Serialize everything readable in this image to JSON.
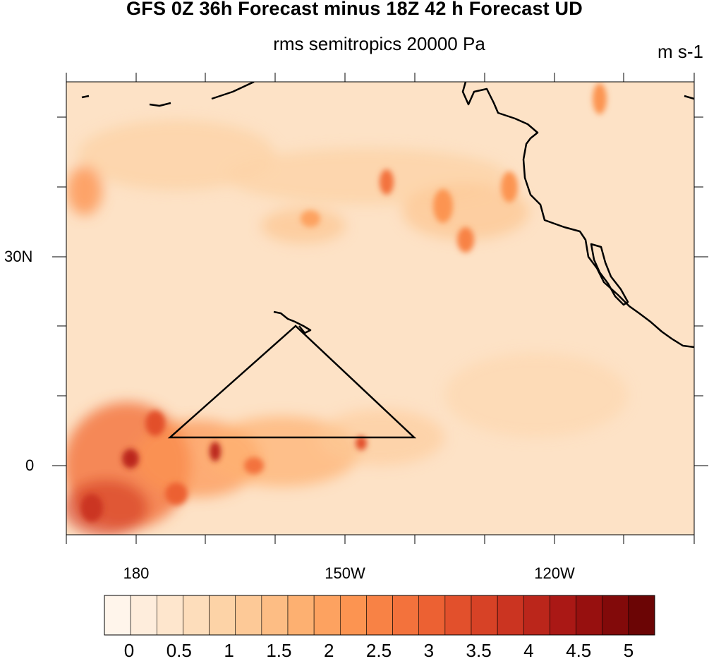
{
  "map": {
    "title": "GFS 0Z 36h Forecast minus 18Z 42 h Forecast UD",
    "subtitle": "rms semitropics 20000 Pa",
    "units": "m s-1",
    "lat_labels": [
      "30N",
      "0"
    ],
    "lon_labels": [
      "180",
      "150W",
      "120W"
    ],
    "outline_color": "#000000"
  },
  "colorbar": {
    "labels": [
      "0",
      "0.5",
      "1",
      "1.5",
      "2",
      "2.5",
      "3",
      "3.5",
      "4",
      "4.5",
      "5"
    ],
    "colors": [
      "#fff5eb",
      "#feeddc",
      "#fee6cd",
      "#fdddbb",
      "#fdd3a7",
      "#fdc997",
      "#fdbd84",
      "#fdb071",
      "#fda260",
      "#fc9451",
      "#f88245",
      "#f3723c",
      "#ec6133",
      "#e2502c",
      "#d74226",
      "#cb3421",
      "#bb261b",
      "#aa1815",
      "#97100f",
      "#820a0a",
      "#6b0505"
    ]
  }
}
